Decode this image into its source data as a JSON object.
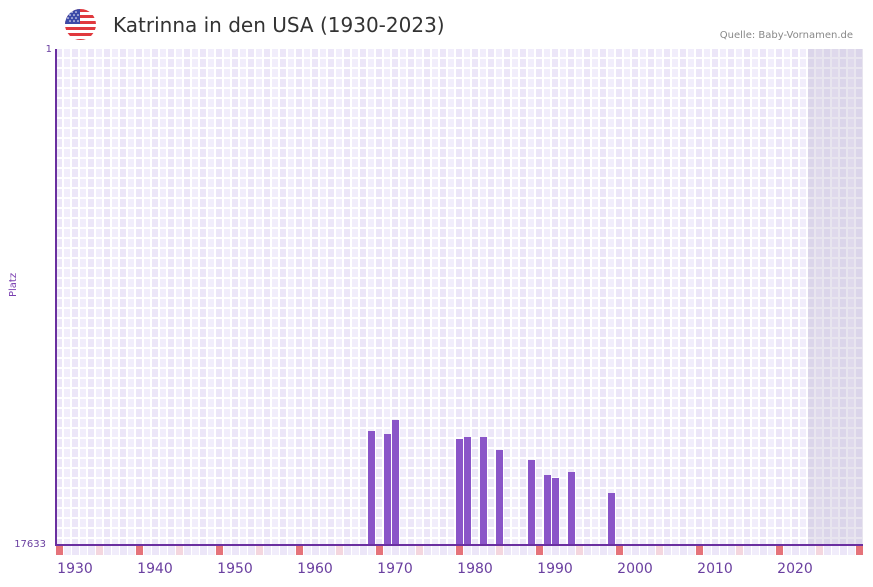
{
  "header": {
    "title": "Katrinna in den USA (1930-2023)",
    "source": "Quelle: Baby-Vornamen.de",
    "flag_icon": "us-flag-icon"
  },
  "colors": {
    "bar": "#8a55c8",
    "axis": "#6a2fa0",
    "tick_text": "#6a3fa0",
    "cell_a": "#f1edfb",
    "cell_b": "#ece6f8",
    "marker_decade": "#e5737a",
    "marker_half": "#f4d6de",
    "marker_plain_a": "#f1edfb",
    "marker_plain_b": "#ece6f8"
  },
  "axis": {
    "y_top_label": "1",
    "y_bottom_label": "17633",
    "y_title": "Platz",
    "x_labels": [
      "1930",
      "1940",
      "1950",
      "1960",
      "1970",
      "1980",
      "1990",
      "2000",
      "2010",
      "2020"
    ]
  },
  "chart_data": {
    "type": "bar",
    "title": "Katrinna in den USA (1930-2023)",
    "xlabel": "",
    "ylabel": "Platz",
    "ylim": [
      17633,
      1
    ],
    "y_inverted": true,
    "x_range": [
      1928,
      2028
    ],
    "data_range": [
      1930,
      2023
    ],
    "x_ticks": [
      1930,
      1940,
      1950,
      1960,
      1970,
      1980,
      1990,
      2000,
      2010,
      2020
    ],
    "y_ticks": [
      1,
      17633
    ],
    "grid": true,
    "legend": null,
    "source": "Quelle: Baby-Vornamen.de",
    "x": [
      1967,
      1969,
      1970,
      1978,
      1979,
      1981,
      1983,
      1987,
      1989,
      1990,
      1992,
      1997
    ],
    "values": [
      13580,
      13687,
      13189,
      13865,
      13794,
      13794,
      14256,
      14611,
      15144,
      15251,
      15038,
      15784
    ]
  }
}
